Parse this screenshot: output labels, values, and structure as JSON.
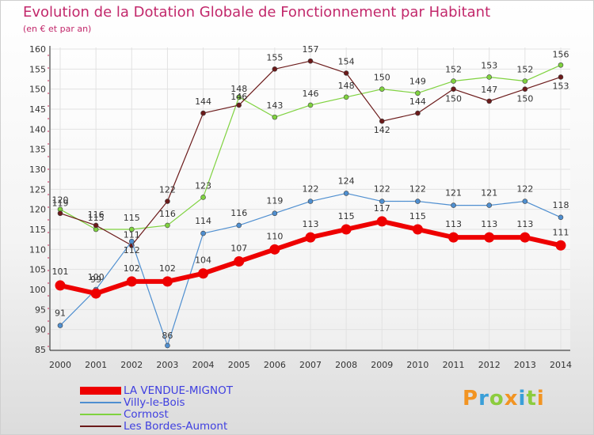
{
  "title": "Evolution de la Dotation Globale de Fonctionnement par Habitant",
  "subtitle": "(en € et par an)",
  "logo": "Proxiti",
  "chart_data": {
    "type": "line",
    "title": "Evolution de la Dotation Globale de Fonctionnement par Habitant",
    "subtitle": "(en € et par an)",
    "xlabel": "",
    "ylabel": "",
    "x": [
      "2000",
      "2001",
      "2002",
      "2003",
      "2004",
      "2005",
      "2006",
      "2007",
      "2008",
      "2009",
      "2010",
      "2011",
      "2012",
      "2013",
      "2014"
    ],
    "ylim": [
      85,
      160
    ],
    "yticks": [
      85,
      90,
      95,
      100,
      105,
      110,
      115,
      120,
      125,
      130,
      135,
      140,
      145,
      150,
      155,
      160
    ],
    "grid": true,
    "legend_position": "bottom-left",
    "series": [
      {
        "name": "LA VENDUE-MIGNOT",
        "color": "#ee0000",
        "values": [
          101,
          99,
          102,
          102,
          104,
          107,
          110,
          113,
          115,
          117,
          115,
          113,
          113,
          113,
          111
        ]
      },
      {
        "name": "Villy-le-Bois",
        "color": "#4f8fd0",
        "values": [
          91,
          100,
          112,
          86,
          114,
          116,
          119,
          122,
          124,
          122,
          122,
          121,
          121,
          122,
          118
        ]
      },
      {
        "name": "Cormost",
        "color": "#7fd23f",
        "values": [
          120,
          115,
          115,
          116,
          123,
          148,
          143,
          146,
          148,
          150,
          149,
          152,
          153,
          152,
          156
        ]
      },
      {
        "name": "Les Bordes-Aumont",
        "color": "#6b1a1a",
        "values": [
          119,
          116,
          111,
          122,
          144,
          146,
          155,
          157,
          154,
          142,
          144,
          150,
          147,
          150,
          153
        ]
      }
    ]
  }
}
